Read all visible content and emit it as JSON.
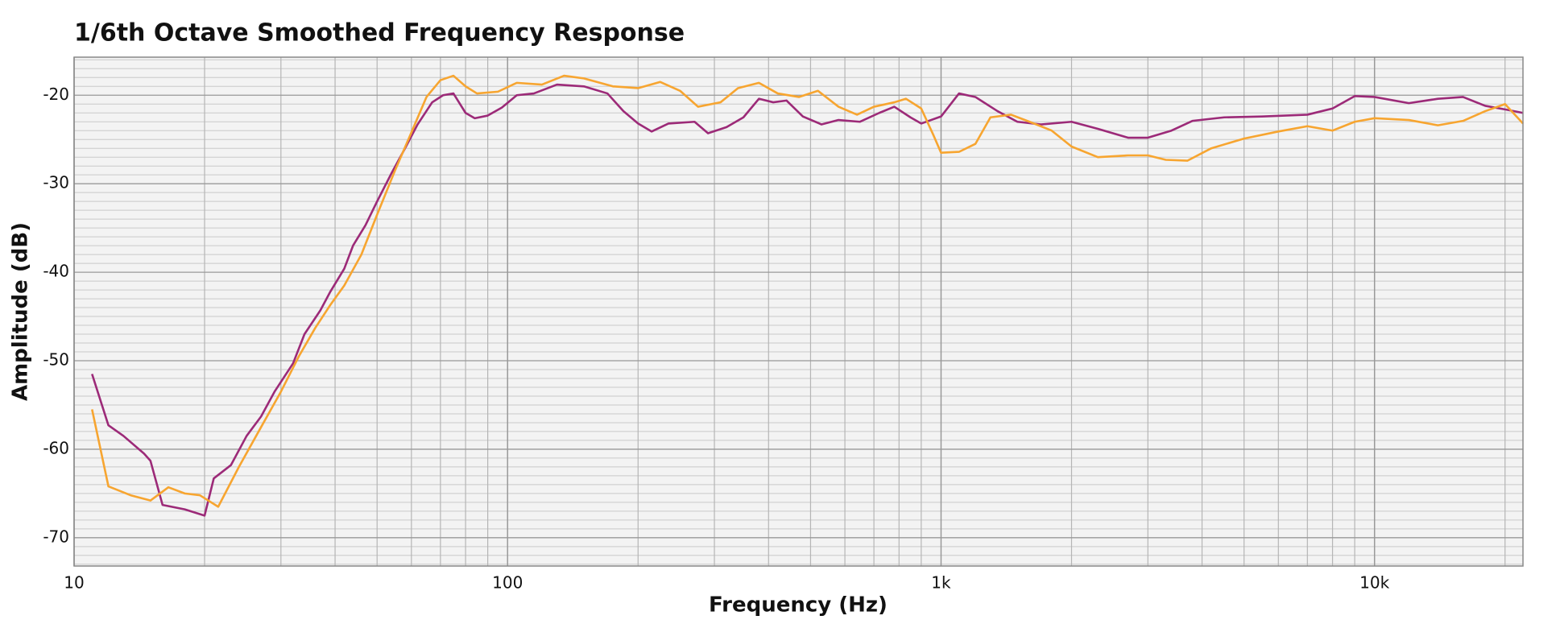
{
  "chart_data": {
    "type": "line",
    "title": "1/6th Octave Smoothed Frequency Response",
    "xlabel": "Frequency (Hz)",
    "ylabel": "Amplitude (dB)",
    "xscale": "log",
    "grid": true,
    "xlim": [
      10,
      22000
    ],
    "ylim": [
      -73.2,
      -15.7
    ],
    "xticks": [
      10,
      100,
      {
        "value": 1000,
        "label": "1k"
      },
      {
        "value": 10000,
        "label": "10k"
      }
    ],
    "xticks_minor": [
      20,
      30,
      40,
      50,
      60,
      70,
      80,
      90,
      200,
      300,
      400,
      500,
      600,
      700,
      800,
      900,
      2000,
      3000,
      4000,
      5000,
      6000,
      7000,
      8000,
      9000,
      20000
    ],
    "yticks": [
      -20,
      -30,
      -40,
      -50,
      -60,
      -70
    ],
    "yticks_minor": [
      -73,
      -72,
      -71,
      -69,
      -68,
      -67,
      -66,
      -65,
      -64,
      -63,
      -62,
      -61,
      -59,
      -58,
      -57,
      -56,
      -55,
      -54,
      -53,
      -52,
      -51,
      -49,
      -48,
      -47,
      -46,
      -45,
      -44,
      -43,
      -42,
      -41,
      -39,
      -38,
      -37,
      -36,
      -35,
      -34,
      -33,
      -32,
      -31,
      -29,
      -28,
      -27,
      -26,
      -25,
      -24,
      -23,
      -22,
      -21,
      -19,
      -18,
      -17,
      -16
    ],
    "series": [
      {
        "color": "#9c2a78",
        "x": [
          11,
          12,
          13,
          14.5,
          15,
          16,
          18,
          20,
          21,
          23,
          25,
          27,
          29,
          32,
          34,
          37,
          39,
          42,
          44,
          47,
          50,
          54,
          58,
          62,
          67,
          71,
          75,
          80,
          84,
          90,
          97,
          105,
          115,
          130,
          150,
          170,
          185,
          200,
          215,
          235,
          270,
          290,
          320,
          350,
          380,
          410,
          440,
          480,
          530,
          580,
          650,
          720,
          780,
          850,
          900,
          1000,
          1100,
          1200,
          1350,
          1500,
          1700,
          2000,
          2300,
          2700,
          3000,
          3400,
          3800,
          4500,
          5500,
          7000,
          8000,
          9000,
          10000,
          12000,
          14000,
          16000,
          18000,
          20000,
          22000
        ],
        "values": [
          -51.5,
          -57.3,
          -58.5,
          -60.5,
          -61.3,
          -66.3,
          -66.8,
          -67.5,
          -63.3,
          -61.8,
          -58.5,
          -56.3,
          -53.5,
          -50.3,
          -47,
          -44.3,
          -42.2,
          -39.6,
          -37,
          -34.7,
          -32,
          -28.8,
          -26,
          -23.3,
          -20.8,
          -20,
          -19.8,
          -22,
          -22.6,
          -22.3,
          -21.4,
          -20,
          -19.8,
          -18.8,
          -19,
          -19.8,
          -21.8,
          -23.2,
          -24.1,
          -23.2,
          -23,
          -24.3,
          -23.6,
          -22.5,
          -20.4,
          -20.8,
          -20.6,
          -22.4,
          -23.3,
          -22.8,
          -23,
          -22,
          -21.3,
          -22.5,
          -23.2,
          -22.4,
          -19.8,
          -20.2,
          -21.8,
          -23,
          -23.3,
          -23,
          -23.8,
          -24.8,
          -24.8,
          -24,
          -22.9,
          -22.5,
          -22.4,
          -22.2,
          -21.5,
          -20.1,
          -20.2,
          -20.9,
          -20.4,
          -20.2,
          -21.2,
          -21.6,
          -22
        ]
      },
      {
        "color": "#f7a530",
        "x": [
          11,
          12,
          13.5,
          15,
          16.5,
          18,
          19.5,
          21.5,
          24,
          27,
          30,
          33,
          36,
          39,
          42,
          46,
          50,
          55,
          60,
          65,
          70,
          75,
          80,
          85,
          95,
          105,
          120,
          135,
          150,
          175,
          200,
          225,
          250,
          275,
          310,
          340,
          380,
          420,
          470,
          520,
          580,
          640,
          700,
          780,
          830,
          900,
          960,
          1000,
          1100,
          1200,
          1300,
          1450,
          1600,
          1800,
          2000,
          2300,
          2700,
          3000,
          3300,
          3700,
          4200,
          5000,
          6000,
          7000,
          8000,
          9000,
          10000,
          12000,
          14000,
          16000,
          18000,
          20000,
          22000
        ],
        "values": [
          -55.5,
          -64.2,
          -65.2,
          -65.8,
          -64.3,
          -65,
          -65.2,
          -66.5,
          -62,
          -57.5,
          -53.5,
          -49.5,
          -46.3,
          -43.7,
          -41.5,
          -38,
          -33.5,
          -28.5,
          -24.2,
          -20.2,
          -18.3,
          -17.8,
          -19,
          -19.8,
          -19.6,
          -18.6,
          -18.8,
          -17.8,
          -18.1,
          -19,
          -19.2,
          -18.5,
          -19.5,
          -21.3,
          -20.8,
          -19.2,
          -18.6,
          -19.8,
          -20.2,
          -19.5,
          -21.3,
          -22.2,
          -21.3,
          -20.8,
          -20.4,
          -21.5,
          -24.5,
          -26.5,
          -26.4,
          -25.5,
          -22.5,
          -22.2,
          -23,
          -24,
          -25.8,
          -27,
          -26.8,
          -26.8,
          -27.3,
          -27.4,
          -26,
          -24.9,
          -24.1,
          -23.5,
          -24,
          -23,
          -22.6,
          -22.8,
          -23.4,
          -22.9,
          -21.8,
          -21,
          -23.2
        ]
      }
    ]
  }
}
